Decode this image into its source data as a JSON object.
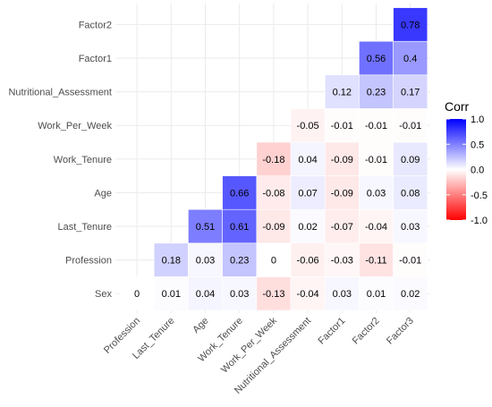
{
  "chart_data": {
    "type": "heatmap",
    "x_categories": [
      "Profession",
      "Last_Tenure",
      "Age",
      "Work_Tenure",
      "Work_Per_Week",
      "Nutritional_Assessment",
      "Factor1",
      "Factor2",
      "Factor3"
    ],
    "y_categories": [
      "Sex",
      "Profession",
      "Last_Tenure",
      "Age",
      "Work_Tenure",
      "Work_Per_Week",
      "Nutritional_Assessment",
      "Factor1",
      "Factor2"
    ],
    "cells": [
      {
        "x": "Profession",
        "y": "Sex",
        "value": 0,
        "label": "0"
      },
      {
        "x": "Last_Tenure",
        "y": "Sex",
        "value": 0.01,
        "label": "0.01"
      },
      {
        "x": "Age",
        "y": "Sex",
        "value": 0.04,
        "label": "0.04"
      },
      {
        "x": "Work_Tenure",
        "y": "Sex",
        "value": 0.03,
        "label": "0.03"
      },
      {
        "x": "Work_Per_Week",
        "y": "Sex",
        "value": -0.13,
        "label": "-0.13"
      },
      {
        "x": "Nutritional_Assessment",
        "y": "Sex",
        "value": -0.04,
        "label": "-0.04"
      },
      {
        "x": "Factor1",
        "y": "Sex",
        "value": 0.03,
        "label": "0.03"
      },
      {
        "x": "Factor2",
        "y": "Sex",
        "value": 0.01,
        "label": "0.01"
      },
      {
        "x": "Factor3",
        "y": "Sex",
        "value": 0.02,
        "label": "0.02"
      },
      {
        "x": "Last_Tenure",
        "y": "Profession",
        "value": 0.18,
        "label": "0.18"
      },
      {
        "x": "Age",
        "y": "Profession",
        "value": 0.03,
        "label": "0.03"
      },
      {
        "x": "Work_Tenure",
        "y": "Profession",
        "value": 0.23,
        "label": "0.23"
      },
      {
        "x": "Work_Per_Week",
        "y": "Profession",
        "value": 0,
        "label": "0"
      },
      {
        "x": "Nutritional_Assessment",
        "y": "Profession",
        "value": -0.06,
        "label": "-0.06"
      },
      {
        "x": "Factor1",
        "y": "Profession",
        "value": -0.03,
        "label": "-0.03"
      },
      {
        "x": "Factor2",
        "y": "Profession",
        "value": -0.11,
        "label": "-0.11"
      },
      {
        "x": "Factor3",
        "y": "Profession",
        "value": -0.01,
        "label": "-0.01"
      },
      {
        "x": "Age",
        "y": "Last_Tenure",
        "value": 0.51,
        "label": "0.51"
      },
      {
        "x": "Work_Tenure",
        "y": "Last_Tenure",
        "value": 0.61,
        "label": "0.61"
      },
      {
        "x": "Work_Per_Week",
        "y": "Last_Tenure",
        "value": -0.09,
        "label": "-0.09"
      },
      {
        "x": "Nutritional_Assessment",
        "y": "Last_Tenure",
        "value": 0.02,
        "label": "0.02"
      },
      {
        "x": "Factor1",
        "y": "Last_Tenure",
        "value": -0.07,
        "label": "-0.07"
      },
      {
        "x": "Factor2",
        "y": "Last_Tenure",
        "value": -0.04,
        "label": "-0.04"
      },
      {
        "x": "Factor3",
        "y": "Last_Tenure",
        "value": 0.03,
        "label": "0.03"
      },
      {
        "x": "Work_Tenure",
        "y": "Age",
        "value": 0.66,
        "label": "0.66"
      },
      {
        "x": "Work_Per_Week",
        "y": "Age",
        "value": -0.08,
        "label": "-0.08"
      },
      {
        "x": "Nutritional_Assessment",
        "y": "Age",
        "value": 0.07,
        "label": "0.07"
      },
      {
        "x": "Factor1",
        "y": "Age",
        "value": -0.09,
        "label": "-0.09"
      },
      {
        "x": "Factor2",
        "y": "Age",
        "value": 0.03,
        "label": "0.03"
      },
      {
        "x": "Factor3",
        "y": "Age",
        "value": 0.08,
        "label": "0.08"
      },
      {
        "x": "Work_Per_Week",
        "y": "Work_Tenure",
        "value": -0.18,
        "label": "-0.18"
      },
      {
        "x": "Nutritional_Assessment",
        "y": "Work_Tenure",
        "value": 0.04,
        "label": "0.04"
      },
      {
        "x": "Factor1",
        "y": "Work_Tenure",
        "value": -0.09,
        "label": "-0.09"
      },
      {
        "x": "Factor2",
        "y": "Work_Tenure",
        "value": -0.01,
        "label": "-0.01"
      },
      {
        "x": "Factor3",
        "y": "Work_Tenure",
        "value": 0.09,
        "label": "0.09"
      },
      {
        "x": "Nutritional_Assessment",
        "y": "Work_Per_Week",
        "value": -0.05,
        "label": "-0.05"
      },
      {
        "x": "Factor1",
        "y": "Work_Per_Week",
        "value": -0.01,
        "label": "-0.01"
      },
      {
        "x": "Factor2",
        "y": "Work_Per_Week",
        "value": -0.01,
        "label": "-0.01"
      },
      {
        "x": "Factor3",
        "y": "Work_Per_Week",
        "value": -0.01,
        "label": "-0.01"
      },
      {
        "x": "Factor1",
        "y": "Nutritional_Assessment",
        "value": 0.12,
        "label": "0.12"
      },
      {
        "x": "Factor2",
        "y": "Nutritional_Assessment",
        "value": 0.23,
        "label": "0.23"
      },
      {
        "x": "Factor3",
        "y": "Nutritional_Assessment",
        "value": 0.17,
        "label": "0.17"
      },
      {
        "x": "Factor2",
        "y": "Factor1",
        "value": 0.56,
        "label": "0.56"
      },
      {
        "x": "Factor3",
        "y": "Factor1",
        "value": 0.4,
        "label": "0.4"
      },
      {
        "x": "Factor3",
        "y": "Factor2",
        "value": 0.78,
        "label": "0.78"
      }
    ],
    "legend": {
      "title": "Corr",
      "ticks": [
        "1.0",
        "0.5",
        "0.0",
        "-0.5",
        "-1.0"
      ],
      "range": [
        -1,
        1
      ],
      "placement": "right"
    },
    "colors": {
      "low": "#ff0000",
      "mid": "#ffffff",
      "high": "#0000ff"
    },
    "grid": true,
    "title": "",
    "xlabel": "",
    "ylabel": ""
  }
}
